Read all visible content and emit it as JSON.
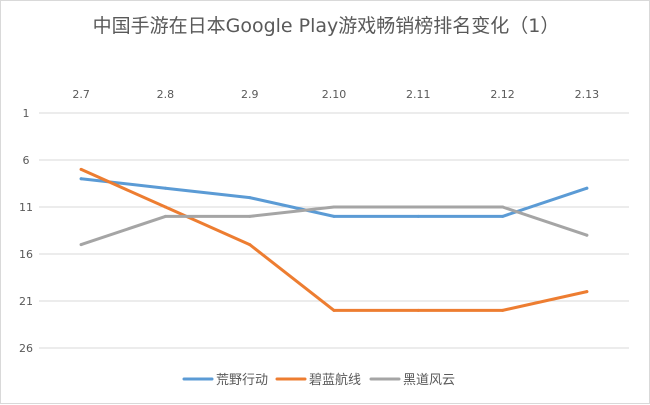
{
  "chart_data": {
    "type": "line",
    "title": "中国手游在日本Google Play游戏畅销榜排名变化（1）",
    "categories": [
      "2.7",
      "2.8",
      "2.9",
      "2.10",
      "2.11",
      "2.12",
      "2.13"
    ],
    "y_ticks": [
      "1",
      "6",
      "11",
      "16",
      "21",
      "26"
    ],
    "ylim": [
      1,
      26
    ],
    "y_reversed": true,
    "x_axis_position": "top",
    "grid": "horizontal",
    "legend_position": "bottom",
    "series": [
      {
        "name": "荒野行动",
        "color": "#5b9bd5",
        "values": [
          8,
          9,
          10,
          12,
          12,
          12,
          9
        ]
      },
      {
        "name": "碧蓝航线",
        "color": "#ed7d31",
        "values": [
          7,
          11,
          15,
          22,
          22,
          22,
          20
        ]
      },
      {
        "name": "黑道风云",
        "color": "#a5a5a5",
        "values": [
          15,
          12,
          12,
          11,
          11,
          11,
          14
        ]
      }
    ]
  }
}
